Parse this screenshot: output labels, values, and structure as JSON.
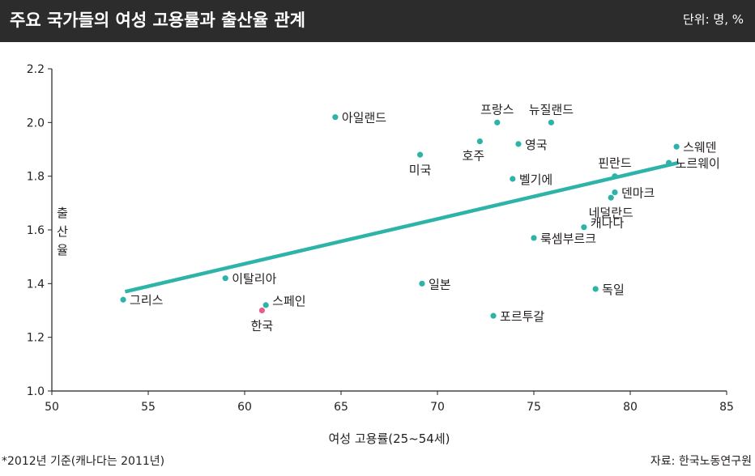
{
  "header": {
    "title": "주요 국가들의 여성 고용률과 출산율 관계",
    "unit": "단위: 명, %"
  },
  "footer": {
    "note": "*2012년 기준(캐나다는 2011년)",
    "source": "자료: 한국노동연구원"
  },
  "colors": {
    "header_bg": "#2c2c2c",
    "point": "#2db3a7",
    "trend": "#2db3a7",
    "highlight": "#e85d8a",
    "text": "#231f20"
  },
  "chart_data": {
    "type": "scatter",
    "xlabel": "여성 고용률(25~54세)",
    "ylabel": "출산율",
    "xlim": [
      50,
      85
    ],
    "ylim": [
      1.0,
      2.2
    ],
    "x_ticks": [
      "50",
      "55",
      "60",
      "65",
      "70",
      "75",
      "80",
      "85"
    ],
    "y_ticks": [
      "1.0",
      "1.2",
      "1.4",
      "1.6",
      "1.8",
      "2.0",
      "2.2"
    ],
    "grid": false,
    "points": [
      {
        "label": "그리스",
        "x": 53.7,
        "y": 1.34,
        "anchor": "right"
      },
      {
        "label": "이탈리아",
        "x": 59.0,
        "y": 1.42,
        "anchor": "right"
      },
      {
        "label": "스페인",
        "x": 61.1,
        "y": 1.32,
        "anchor": "right-up"
      },
      {
        "label": "한국",
        "x": 60.9,
        "y": 1.3,
        "anchor": "below",
        "highlight": true
      },
      {
        "label": "아일랜드",
        "x": 64.7,
        "y": 2.02,
        "anchor": "right"
      },
      {
        "label": "미국",
        "x": 69.1,
        "y": 1.88,
        "anchor": "below"
      },
      {
        "label": "일본",
        "x": 69.2,
        "y": 1.4,
        "anchor": "right"
      },
      {
        "label": "호주",
        "x": 72.2,
        "y": 1.93,
        "anchor": "below-left"
      },
      {
        "label": "프랑스",
        "x": 73.1,
        "y": 2.0,
        "anchor": "above"
      },
      {
        "label": "영국",
        "x": 74.2,
        "y": 1.92,
        "anchor": "right"
      },
      {
        "label": "벨기에",
        "x": 73.9,
        "y": 1.79,
        "anchor": "right"
      },
      {
        "label": "포르투갈",
        "x": 72.9,
        "y": 1.28,
        "anchor": "right"
      },
      {
        "label": "룩셈부르크",
        "x": 75.0,
        "y": 1.57,
        "anchor": "right"
      },
      {
        "label": "뉴질랜드",
        "x": 75.9,
        "y": 2.0,
        "anchor": "above"
      },
      {
        "label": "캐나다",
        "x": 77.6,
        "y": 1.61,
        "anchor": "right-up"
      },
      {
        "label": "독일",
        "x": 78.2,
        "y": 1.38,
        "anchor": "right"
      },
      {
        "label": "핀란드",
        "x": 79.2,
        "y": 1.8,
        "anchor": "above"
      },
      {
        "label": "덴마크",
        "x": 79.2,
        "y": 1.74,
        "anchor": "right"
      },
      {
        "label": "네덜란드",
        "x": 79.0,
        "y": 1.72,
        "anchor": "below"
      },
      {
        "label": "스웨덴",
        "x": 82.4,
        "y": 1.91,
        "anchor": "right"
      },
      {
        "label": "노르웨이",
        "x": 82.0,
        "y": 1.85,
        "anchor": "right"
      }
    ],
    "trendline": {
      "x": [
        53.8,
        82.5
      ],
      "y": [
        1.37,
        1.85
      ]
    }
  }
}
